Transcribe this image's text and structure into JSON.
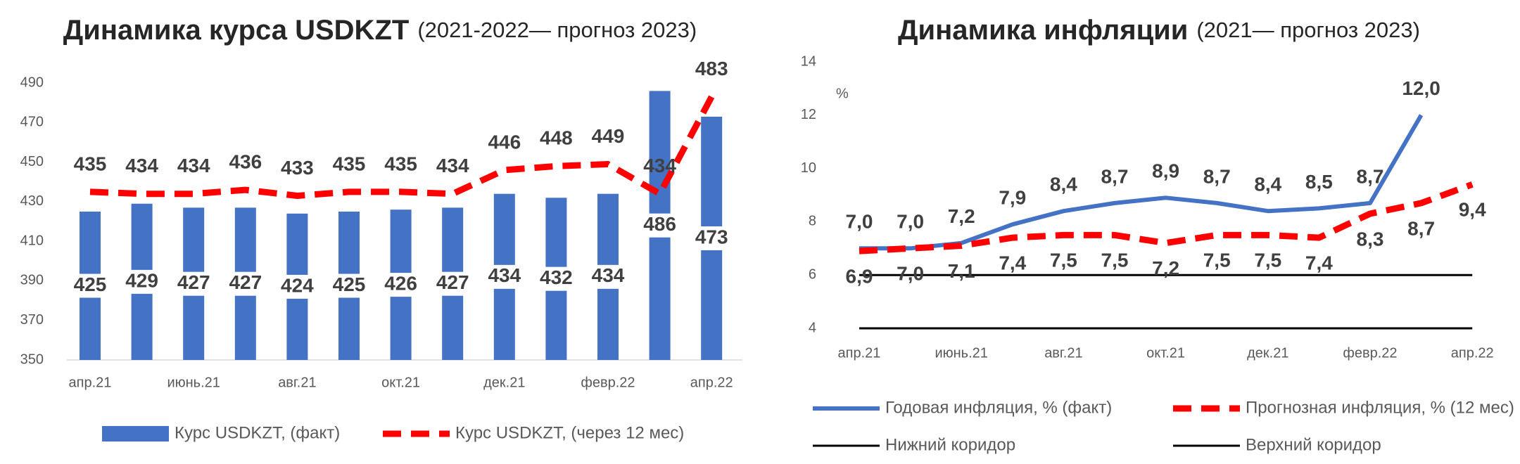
{
  "chart_data": [
    {
      "type": "bar",
      "title": "Динамика курса USDKZT",
      "subtitle": "(2021-2022— прогноз 2023)",
      "categories": [
        "апр.21",
        null,
        "июнь.21",
        null,
        "авг.21",
        null,
        "окт.21",
        null,
        "дек.21",
        null,
        "февр.22",
        null,
        "апр.22"
      ],
      "series": [
        {
          "name": "Курс USDKZT, (факт)",
          "type": "bar",
          "color": "#4472c4",
          "values": [
            425,
            429,
            427,
            427,
            424,
            425,
            426,
            427,
            434,
            432,
            434,
            486,
            473
          ]
        },
        {
          "name": "Курс USDKZT, (через 12 мес)",
          "type": "line",
          "line_style": "dashed",
          "color": "#ff0000",
          "values": [
            435,
            434,
            434,
            436,
            433,
            435,
            435,
            434,
            446,
            448,
            449,
            434,
            483
          ]
        }
      ],
      "ylim": [
        350,
        500
      ],
      "yticks": [
        350,
        370,
        390,
        410,
        430,
        450,
        470,
        490
      ],
      "grid": false
    },
    {
      "type": "line",
      "title": "Динамика инфляции",
      "subtitle": "(2021— прогноз 2023)",
      "y_unit": "%",
      "categories": [
        "апр.21",
        null,
        "июнь.21",
        null,
        "авг.21",
        null,
        "окт.21",
        null,
        "дек.21",
        null,
        "февр.22",
        null,
        "апр.22"
      ],
      "series": [
        {
          "name": "Годовая инфляция, % (факт)",
          "line_style": "solid",
          "color": "#4472c4",
          "values": [
            7.0,
            7.0,
            7.2,
            7.9,
            8.4,
            8.7,
            8.9,
            8.7,
            8.4,
            8.5,
            8.7,
            12.0,
            null
          ],
          "value_labels": [
            "7,0",
            "7,0",
            "7,2",
            "7,9",
            "8,4",
            "8,7",
            "8,9",
            "8,7",
            "8,4",
            "8,5",
            "8,7",
            "12,0",
            null
          ]
        },
        {
          "name": "Прогнозная инфляция, % (12 мес)",
          "line_style": "dashed",
          "color": "#ff0000",
          "values": [
            6.9,
            7.0,
            7.1,
            7.4,
            7.5,
            7.5,
            7.2,
            7.5,
            7.5,
            7.4,
            8.3,
            8.7,
            9.4
          ],
          "value_labels": [
            "6,9",
            "7,0",
            "7,1",
            "7,4",
            "7,5",
            "7,5",
            "7,2",
            "7,5",
            "7,5",
            "7,4",
            "8,3",
            "8,7",
            "9,4"
          ]
        },
        {
          "name": "Нижний коридор",
          "line_style": "solid",
          "color": "#000000",
          "values": [
            4,
            4,
            4,
            4,
            4,
            4,
            4,
            4,
            4,
            4,
            4,
            4,
            4
          ]
        },
        {
          "name": "Верхний коридор",
          "line_style": "solid",
          "color": "#000000",
          "values": [
            6,
            6,
            6,
            6,
            6,
            6,
            6,
            6,
            6,
            6,
            6,
            6,
            6
          ]
        }
      ],
      "ylim": [
        4,
        14
      ],
      "yticks": [
        4,
        6,
        8,
        10,
        12,
        14
      ],
      "grid": false
    }
  ]
}
